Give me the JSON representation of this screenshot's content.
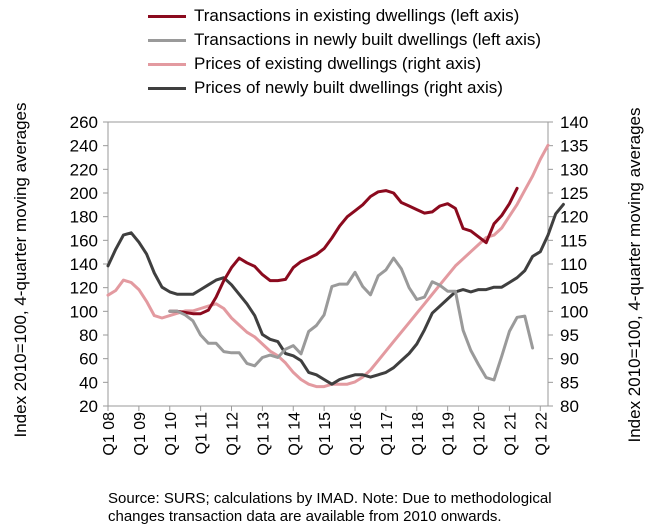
{
  "legend": [
    {
      "label": "Transactions in existing dwellings (left axis)",
      "color": "#8b0a1e"
    },
    {
      "label": "Transactions in newly built dwellings (left axis)",
      "color": "#9a9a9a"
    },
    {
      "label": "Prices of existing dwellings (right axis)",
      "color": "#e39aa0"
    },
    {
      "label": "Prices of newly built dwellings (right axis)",
      "color": "#3f3f3f"
    }
  ],
  "source_note": {
    "line1": "Source: SURS; calculations by IMAD. Note: Due to methodological",
    "line2": "changes transaction data are available from 2010 onwards."
  },
  "chart_data": {
    "type": "line",
    "grid": false,
    "x_tick_labels": [
      "Q1 08",
      "Q1 09",
      "Q1 10",
      "Q1 11",
      "Q1 12",
      "Q1 13",
      "Q1 14",
      "Q1 15",
      "Q1 16",
      "Q1 17",
      "Q1 18",
      "Q1 19",
      "Q1 20",
      "Q1 21",
      "Q1 22"
    ],
    "y_left": {
      "label": "Index 2010=100, 4-quarter moving averages",
      "range": [
        20,
        260
      ],
      "ticks": [
        20,
        40,
        60,
        80,
        100,
        120,
        140,
        160,
        180,
        200,
        220,
        240,
        260
      ]
    },
    "y_right": {
      "label": "Index 2010=100, 4-quarter moving averages",
      "range": [
        80,
        140
      ],
      "ticks": [
        80,
        85,
        90,
        95,
        100,
        105,
        110,
        115,
        120,
        125,
        130,
        135,
        140
      ]
    },
    "series": [
      {
        "name": "Prices of existing dwellings (right axis)",
        "axis": "right",
        "color": "#e39aa0",
        "start": "Q1 08",
        "values": [
          103.4,
          104.4,
          106.6,
          106.1,
          104.6,
          102.1,
          99.1,
          98.6,
          99.1,
          99.6,
          100.1,
          100.1,
          100.6,
          101.1,
          101.6,
          100.6,
          98.6,
          97.1,
          95.6,
          94.6,
          93.1,
          91.6,
          90.6,
          89.1,
          87.1,
          85.6,
          84.6,
          84.1,
          84.1,
          84.6,
          84.6,
          84.6,
          85.1,
          86.1,
          87.6,
          89.6,
          91.6,
          93.6,
          95.6,
          97.6,
          99.6,
          101.6,
          103.6,
          105.6,
          107.6,
          109.6,
          111.1,
          112.6,
          114.1,
          115.6,
          116.1,
          117.6,
          120.1,
          122.6,
          125.6,
          128.6,
          132.1,
          135.1
        ]
      },
      {
        "name": "Prices of newly built dwellings (right axis)",
        "axis": "right",
        "color": "#3f3f3f",
        "start": "Q1 08",
        "values": [
          109.6,
          113.1,
          116.1,
          116.6,
          114.6,
          112.1,
          108.1,
          105.1,
          104.1,
          103.6,
          103.6,
          103.6,
          104.6,
          105.6,
          106.6,
          107.1,
          105.6,
          103.6,
          101.6,
          99.1,
          95.1,
          94.1,
          93.6,
          91.1,
          90.6,
          89.6,
          87.1,
          86.6,
          85.6,
          84.6,
          85.6,
          86.1,
          86.6,
          86.6,
          86.1,
          86.6,
          87.1,
          88.1,
          89.6,
          91.1,
          93.1,
          96.1,
          99.6,
          101.1,
          102.6,
          104.1,
          104.6,
          104.1,
          104.6,
          104.6,
          105.1,
          105.1,
          106.1,
          107.1,
          108.6,
          111.6,
          112.6,
          116.1,
          120.6,
          122.6
        ]
      },
      {
        "name": "Transactions in existing dwellings (left axis)",
        "axis": "left",
        "color": "#8b0a1e",
        "start": "Q1 10",
        "values": [
          100,
          100,
          99,
          98,
          98,
          101,
          112,
          126,
          137,
          145,
          141,
          138,
          131,
          126,
          126,
          127,
          137,
          142,
          145,
          148,
          153,
          162,
          172,
          180,
          185,
          190,
          197,
          201,
          202,
          200,
          192,
          189,
          186,
          183,
          184,
          189,
          191,
          187,
          170,
          168,
          163,
          158,
          174,
          181,
          191,
          204
        ]
      },
      {
        "name": "Transactions in newly built dwellings (left axis)",
        "axis": "left",
        "color": "#9a9a9a",
        "start": "Q1 10",
        "values": [
          100,
          100,
          97,
          92,
          80,
          73,
          73,
          66,
          65,
          65,
          56,
          54,
          61,
          63,
          61,
          68,
          71,
          64,
          83,
          88,
          97,
          121,
          123,
          123,
          133,
          121,
          114,
          130,
          135,
          145,
          136,
          120,
          110,
          112,
          125,
          122,
          117,
          117,
          84,
          67,
          55,
          44,
          42,
          62,
          83,
          95,
          96,
          69
        ]
      }
    ]
  }
}
